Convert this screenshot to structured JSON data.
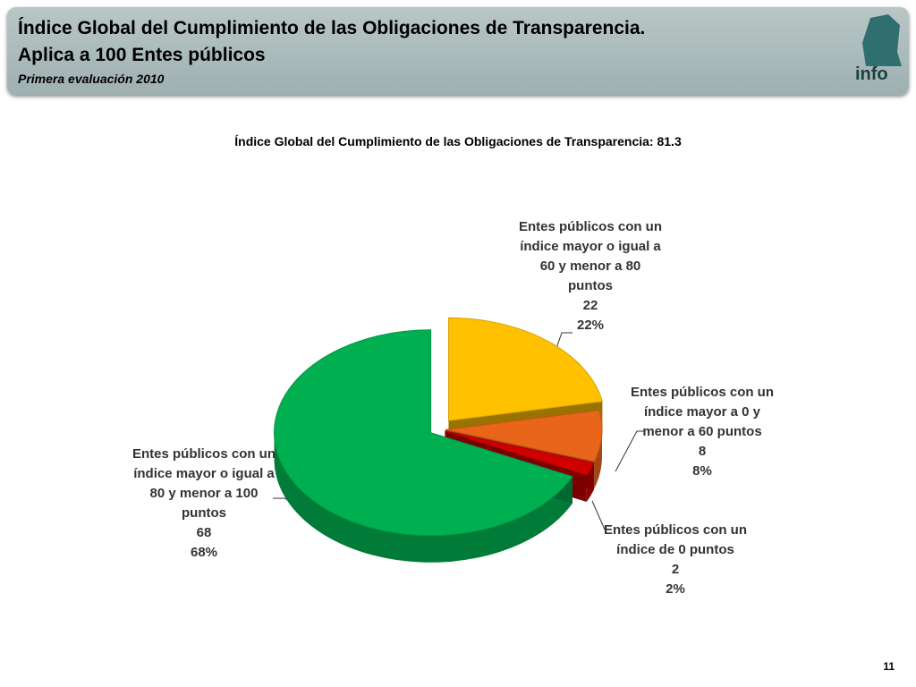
{
  "header": {
    "title": "Índice Global del Cumplimiento de las Obligaciones de Transparencia.",
    "subtitle": "Aplica a 100 Entes públicos",
    "note": "Primera evaluación 2010",
    "logo": "info"
  },
  "chart_data": {
    "type": "pie",
    "title": "Índice Global del Cumplimiento de las Obligaciones de Transparencia: 81.3",
    "categories": [
      "Entes públicos con un índice mayor o igual a 60 y menor a 80 puntos",
      "Entes públicos con un índice mayor a 0 y menor a 60 puntos",
      "Entes públicos con un índice de 0 puntos",
      "Entes públicos con un índice mayor o igual a 80 y menor a 100 puntos"
    ],
    "values": [
      22,
      8,
      2,
      68
    ],
    "value_labels": [
      "22%",
      "8%",
      "2%",
      "68%"
    ],
    "colors": [
      "#ffc000",
      "#e8651a",
      "#d00000",
      "#00b050"
    ]
  },
  "page_number": "11"
}
